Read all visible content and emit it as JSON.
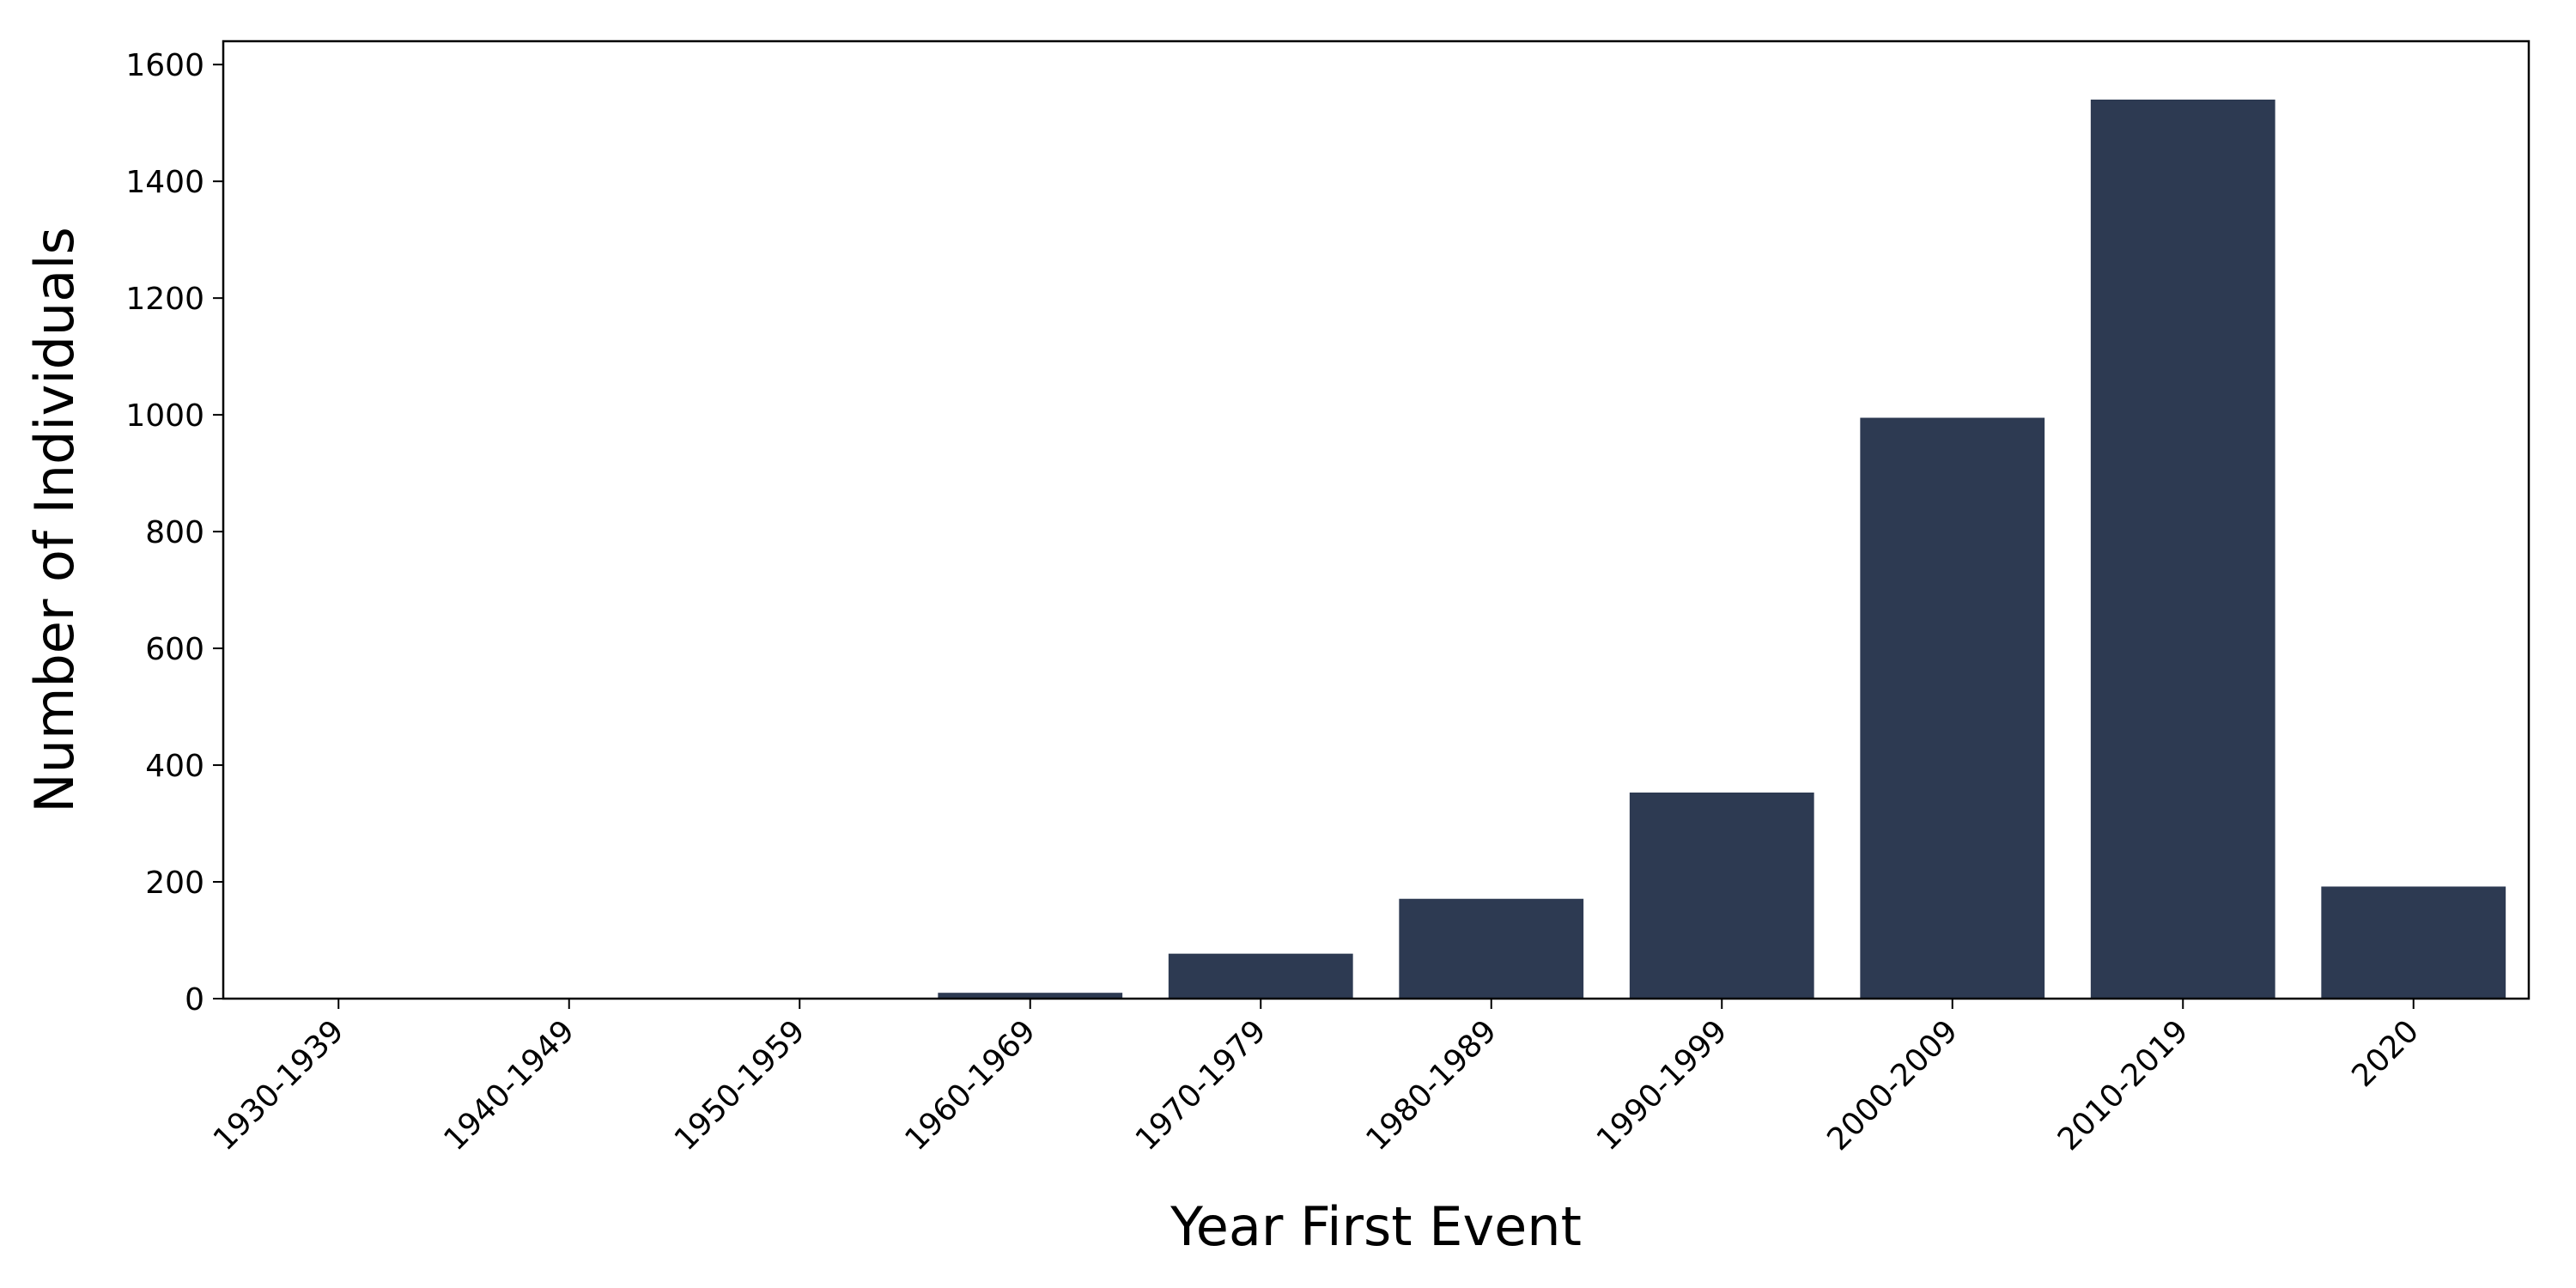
{
  "chart_data": {
    "type": "bar",
    "title": "",
    "xlabel": "Year First Event",
    "ylabel": "Number of Individuals",
    "categories": [
      "1930-1939",
      "1940-1949",
      "1950-1959",
      "1960-1969",
      "1970-1979",
      "1980-1989",
      "1990-1999",
      "2000-2009",
      "2010-2019",
      "2020"
    ],
    "values": [
      1,
      1,
      1,
      10,
      77,
      171,
      353,
      995,
      1540,
      192
    ],
    "ylim": [
      0,
      1640
    ],
    "yticks": [
      0,
      200,
      400,
      600,
      800,
      1000,
      1200,
      1400,
      1600
    ],
    "grid": false,
    "legend": "none",
    "bar_color": "#2d3a52"
  }
}
